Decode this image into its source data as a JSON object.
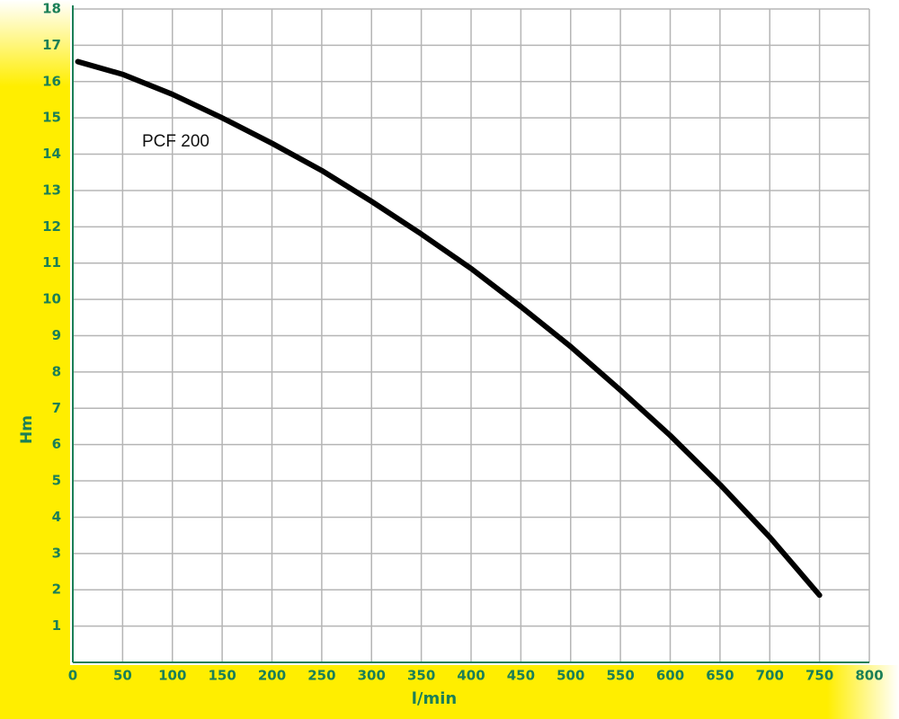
{
  "chart_data": {
    "type": "line",
    "x_label": "l/min",
    "y_label": "Hm",
    "series": [
      {
        "name": "PCF 200",
        "color": "#000000",
        "x": [
          5,
          50,
          100,
          150,
          200,
          250,
          300,
          350,
          400,
          450,
          500,
          550,
          600,
          650,
          700,
          750
        ],
        "values": [
          16.55,
          16.2,
          15.65,
          15.0,
          14.3,
          13.55,
          12.7,
          11.8,
          10.85,
          9.8,
          8.7,
          7.5,
          6.25,
          4.9,
          3.45,
          1.85
        ]
      }
    ],
    "xlim": [
      0,
      800
    ],
    "xticks": [
      0,
      50,
      100,
      150,
      200,
      250,
      300,
      350,
      400,
      450,
      500,
      550,
      600,
      650,
      700,
      750,
      800
    ],
    "ylim": [
      0,
      18
    ],
    "yticks": [
      1,
      2,
      3,
      4,
      5,
      6,
      7,
      8,
      9,
      10,
      11,
      12,
      13,
      14,
      15,
      16,
      17,
      18
    ],
    "grid": true,
    "tick_color": "#1b7f57",
    "background_color": "#ffee00"
  }
}
